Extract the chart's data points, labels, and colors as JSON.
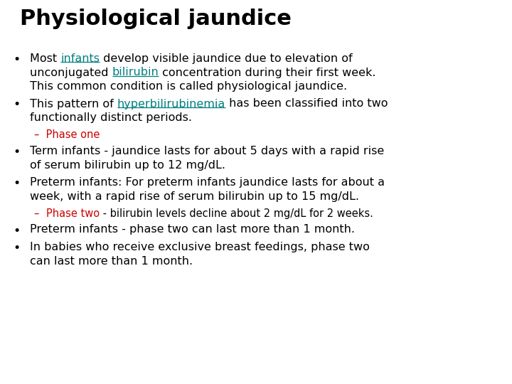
{
  "title": "Physiological jaundice",
  "title_fontsize": 22,
  "title_color": "#000000",
  "bg_color": "#ffffff",
  "text_color": "#000000",
  "link_color": "#008080",
  "phase_color": "#cc0000",
  "body_fontsize": 11.5,
  "sub_fontsize": 10.5,
  "font_family": "DejaVu Sans",
  "content": [
    {
      "type": "bullet",
      "segments": [
        {
          "text": "Most ",
          "style": "normal",
          "color": "#000000"
        },
        {
          "text": "infants",
          "style": "underline",
          "color": "#008080"
        },
        {
          "text": " develop visible jaundice due to elevation of\nunconjugated ",
          "style": "normal",
          "color": "#000000"
        },
        {
          "text": "bilirubin",
          "style": "underline",
          "color": "#008080"
        },
        {
          "text": " concentration during their first week.\nThis common condition is called physiological jaundice.",
          "style": "normal",
          "color": "#000000"
        }
      ]
    },
    {
      "type": "bullet",
      "segments": [
        {
          "text": "This pattern of ",
          "style": "normal",
          "color": "#000000"
        },
        {
          "text": "hyperbilirubinemia",
          "style": "underline",
          "color": "#008080"
        },
        {
          "text": " has been classified into two\nfunctionally distinct periods.",
          "style": "normal",
          "color": "#000000"
        }
      ]
    },
    {
      "type": "sub",
      "segments": [
        {
          "text": "–  Phase one",
          "style": "normal",
          "color": "#cc0000"
        }
      ]
    },
    {
      "type": "bullet",
      "segments": [
        {
          "text": "Term infants - jaundice lasts for about 5 days with a rapid rise\nof serum bilirubin up to 12 mg/dL.",
          "style": "normal",
          "color": "#000000"
        }
      ]
    },
    {
      "type": "bullet",
      "segments": [
        {
          "text": "Preterm infants: For preterm infants jaundice lasts for about a\nweek, with a rapid rise of serum bilirubin up to 15 mg/dL.",
          "style": "normal",
          "color": "#000000"
        }
      ]
    },
    {
      "type": "sub",
      "segments": [
        {
          "text": "–  ",
          "style": "normal",
          "color": "#cc0000"
        },
        {
          "text": "Phase two",
          "style": "normal",
          "color": "#cc0000"
        },
        {
          "text": " - bilirubin levels decline about 2 mg/dL for 2 weeks.",
          "style": "normal",
          "color": "#000000"
        }
      ]
    },
    {
      "type": "bullet",
      "segments": [
        {
          "text": "Preterm infants - phase two can last more than 1 month.",
          "style": "normal",
          "color": "#000000"
        }
      ]
    },
    {
      "type": "bullet",
      "segments": [
        {
          "text": "In babies who receive exclusive breast feedings, phase two\ncan last more than 1 month.",
          "style": "normal",
          "color": "#000000"
        }
      ]
    }
  ]
}
